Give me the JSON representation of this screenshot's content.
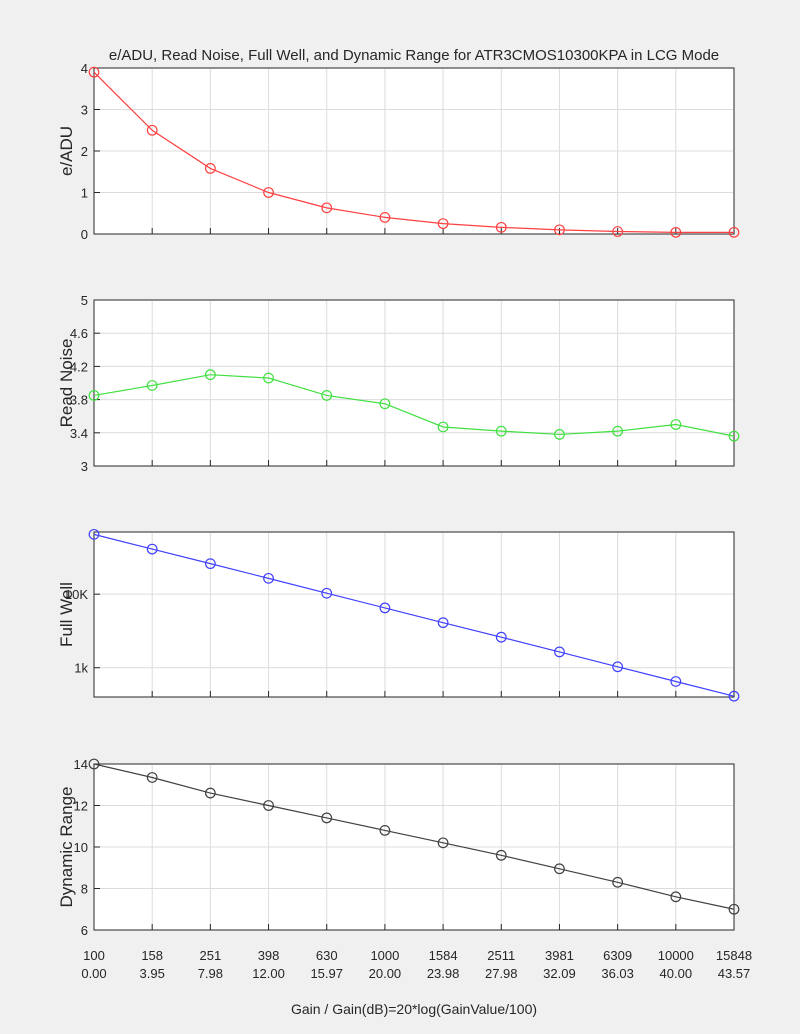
{
  "figure": {
    "title": "e/ADU, Read Noise, Full Well, and Dynamic Range for ATR3CMOS10300KPA in LCG Mode",
    "xlabel": "Gain / Gain(dB)=20*log(GainValue/100)",
    "x_ticks_gain": [
      "100",
      "158",
      "251",
      "398",
      "630",
      "1000",
      "1584",
      "2511",
      "3981",
      "6309",
      "10000",
      "15848"
    ],
    "x_ticks_db": [
      "0.00",
      "3.95",
      "7.98",
      "12.00",
      "15.97",
      "20.00",
      "23.98",
      "27.98",
      "32.09",
      "36.03",
      "40.00",
      "43.57"
    ]
  },
  "chart_data": [
    {
      "type": "line",
      "name": "e/ADU",
      "ylabel": "e/ADU",
      "color": "#ff4040",
      "x": [
        100,
        158,
        251,
        398,
        630,
        1000,
        1584,
        2511,
        3981,
        6309,
        10000,
        15848
      ],
      "values": [
        3.9,
        2.5,
        1.58,
        1.0,
        0.63,
        0.4,
        0.25,
        0.16,
        0.1,
        0.06,
        0.04,
        0.04
      ],
      "ylim": [
        0,
        4
      ],
      "yscale": "linear",
      "yticks": [
        0,
        1,
        2,
        3,
        4
      ],
      "ytick_labels": [
        "0",
        "1",
        "2",
        "3",
        "4"
      ],
      "grid": true,
      "marker": "circle"
    },
    {
      "type": "line",
      "name": "Read Noise",
      "ylabel": "Read Noise",
      "color": "#40e040",
      "x": [
        100,
        158,
        251,
        398,
        630,
        1000,
        1584,
        2511,
        3981,
        6309,
        10000,
        15848
      ],
      "values": [
        3.85,
        3.97,
        4.1,
        4.06,
        3.85,
        3.75,
        3.47,
        3.42,
        3.38,
        3.42,
        3.5,
        3.36
      ],
      "ylim": [
        3,
        5
      ],
      "yscale": "linear",
      "yticks": [
        3,
        3.4,
        3.8,
        4.2,
        4.6,
        5
      ],
      "ytick_labels": [
        "3",
        "3.4",
        "3.8",
        "4.2",
        "4.6",
        "5"
      ],
      "grid": true,
      "marker": "circle"
    },
    {
      "type": "line",
      "name": "Full Well",
      "ylabel": "Full Well",
      "color": "#4040ff",
      "x": [
        100,
        158,
        251,
        398,
        630,
        1000,
        1584,
        2511,
        3981,
        6309,
        10000,
        15848
      ],
      "values": [
        65000,
        41000,
        26000,
        16400,
        10300,
        6500,
        4100,
        2600,
        1640,
        1030,
        650,
        410
      ],
      "ylim": [
        400,
        70000
      ],
      "yscale": "log",
      "yticks": [
        1000,
        10000
      ],
      "ytick_labels": [
        "1k",
        "10K"
      ],
      "grid": true,
      "marker": "circle"
    },
    {
      "type": "line",
      "name": "Dynamic Range",
      "ylabel": "Dynamic Range",
      "color": "#404040",
      "x": [
        100,
        158,
        251,
        398,
        630,
        1000,
        1584,
        2511,
        3981,
        6309,
        10000,
        15848
      ],
      "values": [
        14.0,
        13.35,
        12.6,
        12.0,
        11.4,
        10.8,
        10.2,
        9.6,
        8.95,
        8.3,
        7.6,
        7.0
      ],
      "ylim": [
        6,
        14
      ],
      "yscale": "linear",
      "yticks": [
        6,
        8,
        10,
        12,
        14
      ],
      "ytick_labels": [
        "6",
        "8",
        "10",
        "12",
        "14"
      ],
      "grid": true,
      "marker": "circle"
    }
  ]
}
